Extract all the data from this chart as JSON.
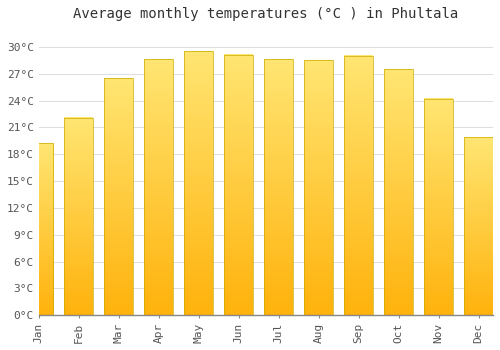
{
  "title": "Average monthly temperatures (°C ) in Phultala",
  "months": [
    "Jan",
    "Feb",
    "Mar",
    "Apr",
    "May",
    "Jun",
    "Jul",
    "Aug",
    "Sep",
    "Oct",
    "Nov",
    "Dec"
  ],
  "values": [
    19.2,
    22.1,
    26.5,
    28.6,
    29.5,
    29.1,
    28.6,
    28.5,
    29.0,
    27.5,
    24.2,
    19.9
  ],
  "bar_color_bottom": "#FFB300",
  "bar_color_top": "#FFD966",
  "background_color": "#FFFFFF",
  "grid_color": "#DDDDDD",
  "ylim": [
    0,
    32
  ],
  "yticks": [
    0,
    3,
    6,
    9,
    12,
    15,
    18,
    21,
    24,
    27,
    30
  ],
  "ytick_labels": [
    "0°C",
    "3°C",
    "6°C",
    "9°C",
    "12°C",
    "15°C",
    "18°C",
    "21°C",
    "24°C",
    "27°C",
    "30°C"
  ],
  "title_fontsize": 10,
  "tick_fontsize": 8,
  "figsize": [
    5.0,
    3.5
  ],
  "dpi": 100,
  "bar_width": 0.72
}
